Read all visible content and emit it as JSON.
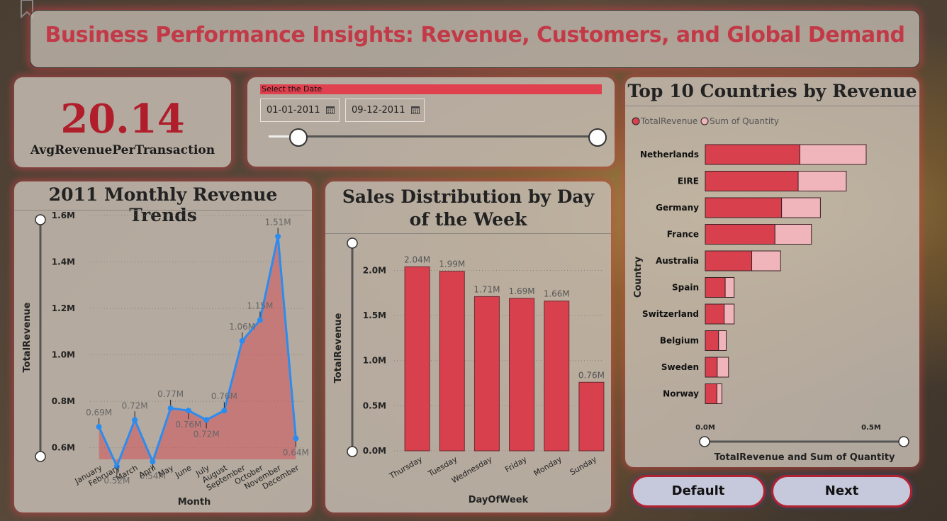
{
  "header": {
    "title": "Business Performance Insights: Revenue, Customers, and Global Demand"
  },
  "kpi": {
    "value": "20.14",
    "label": "AvgRevenuePerTransaction"
  },
  "date_slicer": {
    "header": "Select the Date",
    "start": "01-01-2011",
    "end": "09-12-2011",
    "range_start_fraction": 0.09,
    "range_end_fraction": 1.0
  },
  "buttons": {
    "default_label": "Default",
    "next_label": "Next"
  },
  "colors": {
    "accent": "#d9404e",
    "accent_light": "#f0b4bb",
    "line": "#2b8cf0",
    "title_red": "#c23a48"
  },
  "chart_data": [
    {
      "type": "line",
      "title": "2011 Monthly Revenue Trends",
      "xlabel": "Month",
      "ylabel": "TotalRevenue",
      "ylim": [
        0.55,
        1.6
      ],
      "yticks": [
        "0.6M",
        "0.8M",
        "1.0M",
        "1.2M",
        "1.4M",
        "1.6M"
      ],
      "ytick_values": [
        0.6,
        0.8,
        1.0,
        1.2,
        1.4,
        1.6
      ],
      "categories": [
        "January",
        "February",
        "March",
        "April",
        "May",
        "June",
        "July",
        "August",
        "September",
        "October",
        "November",
        "December"
      ],
      "values": [
        0.69,
        0.52,
        0.72,
        0.54,
        0.77,
        0.76,
        0.72,
        0.76,
        1.06,
        1.15,
        1.51,
        0.64
      ],
      "data_labels": [
        "0.69M",
        "0.52M",
        "0.72M",
        "0.54M",
        "0.77M",
        "0.76M",
        "0.72M",
        "0.76M",
        "1.06M",
        "1.15M",
        "1.51M",
        "0.64M"
      ]
    },
    {
      "type": "bar",
      "title": "Sales Distribution by Day of the Week",
      "xlabel": "DayOfWeek",
      "ylabel": "TotalRevenue",
      "ylim": [
        0,
        2.2
      ],
      "yticks": [
        "0.0M",
        "0.5M",
        "1.0M",
        "1.5M",
        "2.0M"
      ],
      "ytick_values": [
        0,
        0.5,
        1.0,
        1.5,
        2.0
      ],
      "categories": [
        "Thursday",
        "Tuesday",
        "Wednesday",
        "Friday",
        "Monday",
        "Sunday"
      ],
      "values": [
        2.04,
        1.99,
        1.71,
        1.69,
        1.66,
        0.76
      ],
      "data_labels": [
        "2.04M",
        "1.99M",
        "1.71M",
        "1.69M",
        "1.66M",
        "0.76M"
      ]
    },
    {
      "type": "bar",
      "orientation": "horizontal",
      "stacked": true,
      "title": "Top 10 Countries by Revenue",
      "xlabel": "TotalRevenue and Sum of Quantity",
      "ylabel": "Country",
      "xticks": [
        "0.0M",
        "0.5M"
      ],
      "xtick_values": [
        0,
        0.5
      ],
      "legend": "top-left",
      "categories": [
        "Netherlands",
        "EIRE",
        "Germany",
        "France",
        "Australia",
        "Spain",
        "Switzerland",
        "Belgium",
        "Sweden",
        "Norway"
      ],
      "series": [
        {
          "name": "TotalRevenue",
          "values": [
            0.285,
            0.28,
            0.23,
            0.21,
            0.14,
            0.06,
            0.057,
            0.04,
            0.036,
            0.035
          ]
        },
        {
          "name": "Sum of Quantity",
          "values": [
            0.2,
            0.145,
            0.117,
            0.11,
            0.087,
            0.027,
            0.03,
            0.023,
            0.034,
            0.015
          ]
        }
      ]
    }
  ]
}
